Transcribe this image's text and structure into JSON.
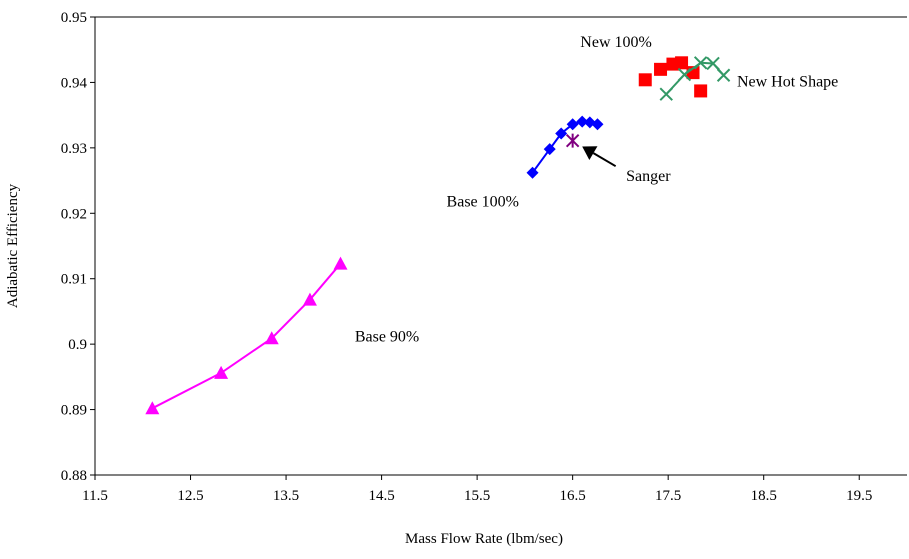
{
  "chart_data": {
    "type": "scatter",
    "title": "",
    "xlabel": "Mass Flow Rate (lbm/sec)",
    "ylabel": "Adiabatic Efficiency",
    "xlim": [
      11.5,
      20.0
    ],
    "ylim": [
      0.88,
      0.95
    ],
    "x_ticks": [
      "11.5",
      "12.5",
      "13.5",
      "14.5",
      "15.5",
      "16.5",
      "17.5",
      "18.5",
      "19.5"
    ],
    "y_ticks": [
      "0.88",
      "0.89",
      "0.9",
      "0.91",
      "0.92",
      "0.93",
      "0.94",
      "0.95"
    ],
    "grid": false,
    "legend": "none",
    "series": [
      {
        "name": "Base 90%",
        "color": "#ff00ff",
        "marker": "triangle",
        "line": true,
        "x": [
          12.1,
          12.82,
          13.35,
          13.75,
          14.07
        ],
        "y": [
          0.8902,
          0.8956,
          0.9009,
          0.9068,
          0.9123
        ]
      },
      {
        "name": "Base 100%",
        "color": "#0000ff",
        "marker": "diamond",
        "line": true,
        "x": [
          16.08,
          16.26,
          16.38,
          16.5,
          16.6,
          16.68,
          16.76
        ],
        "y": [
          0.9262,
          0.9298,
          0.9322,
          0.9336,
          0.934,
          0.9339,
          0.9336
        ]
      },
      {
        "name": "Sanger",
        "color": "#800080",
        "marker": "star",
        "line": false,
        "x": [
          16.5
        ],
        "y": [
          0.9311
        ]
      },
      {
        "name": "New 100%",
        "color": "#ff0000",
        "marker": "square",
        "line": false,
        "x": [
          17.26,
          17.42,
          17.55,
          17.64,
          17.76,
          17.84
        ],
        "y": [
          0.9404,
          0.942,
          0.9428,
          0.943,
          0.9415,
          0.9387
        ]
      },
      {
        "name": "New Hot Shape",
        "color": "#339966",
        "marker": "x",
        "line": true,
        "x": [
          17.48,
          17.67,
          17.84,
          17.97,
          18.08
        ],
        "y": [
          0.9382,
          0.9412,
          0.943,
          0.9429,
          0.9411
        ]
      }
    ],
    "annotations": [
      {
        "text": "Base 90%",
        "x": 14.22,
        "y": 0.9004
      },
      {
        "text": "Base 100%",
        "x": 15.18,
        "y": 0.921
      },
      {
        "text": "Sanger",
        "x": 17.06,
        "y": 0.9249
      },
      {
        "text": "New 100%",
        "x": 16.58,
        "y": 0.9454
      },
      {
        "text": "New Hot Shape",
        "x": 18.22,
        "y": 0.9394
      }
    ],
    "arrow": {
      "label": "Sanger",
      "from_x": 16.95,
      "from_y": 0.9272,
      "to_x": 16.6,
      "to_y": 0.9302
    }
  }
}
